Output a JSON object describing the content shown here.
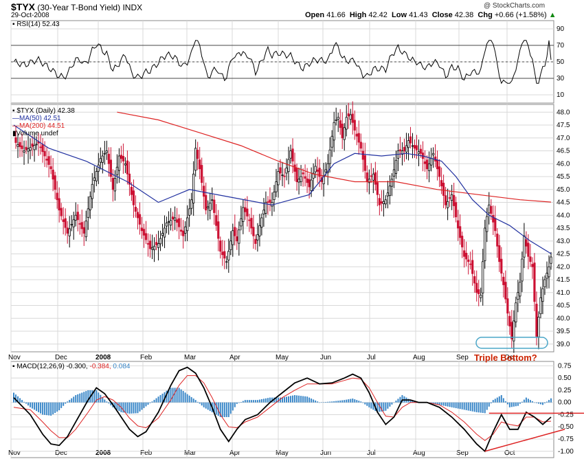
{
  "header": {
    "symbol": "$TYX",
    "name": "(30-Year T-Bond Yield)",
    "exchange": "INDX",
    "date": "29-Oct-2008",
    "open_label": "Open",
    "open": "41.66",
    "high_label": "High",
    "high": "42.42",
    "low_label": "Low",
    "low": "41.43",
    "close_label": "Close",
    "close": "42.38",
    "chg_label": "Chg",
    "chg": "+0.66 (+1.58%)",
    "chg_arrow": "▲",
    "brand": "@ StockCharts.com"
  },
  "legends": {
    "rsi": "RSI(14) 52.43",
    "price": "$TYX (Daily) 42.38",
    "ma50": "MA(50) 42.51",
    "ma200": "MA(200) 44.51",
    "volume": "Volume undef",
    "macd_prefix": "MACD(12,26,9) -0.300,",
    "macd_signal": "-0.384,",
    "macd_hist": "0.084"
  },
  "annotation": "Triple Bottom?",
  "colors": {
    "up": "#000000",
    "down": "#cc1133",
    "ma50": "#1f2f9f",
    "ma200": "#dd2222",
    "hist": "#3a87c8",
    "macd": "#000000",
    "signal": "#dd2222",
    "bottom_ellipse": "#4aa6c8",
    "grid": "#d8d8d8",
    "annotation": "#cc2200"
  },
  "chart_data": [
    {
      "type": "line",
      "title": "RSI(14)",
      "yticks": [
        90,
        70,
        50,
        30,
        10
      ],
      "ylim": [
        0,
        100
      ],
      "reference_lines": [
        70,
        50,
        30
      ],
      "latest": 52.43
    },
    {
      "type": "candlestick",
      "title": "$TYX (Daily)",
      "months": [
        "Nov",
        "Dec",
        "2008",
        "Feb",
        "Mar",
        "Apr",
        "May",
        "Jun",
        "Jul",
        "Aug",
        "Sep",
        "Oct"
      ],
      "yticks": [
        "48.0",
        "47.5",
        "47.0",
        "46.5",
        "46.0",
        "45.5",
        "45.0",
        "44.5",
        "44.0",
        "43.5",
        "43.0",
        "42.5",
        "42.0",
        "41.5",
        "41.0",
        "40.5",
        "40.0",
        "39.5",
        "39.0"
      ],
      "ylim": [
        38.7,
        48.3
      ],
      "close_path": [
        [
          0,
          46.9
        ],
        [
          5,
          46.5
        ],
        [
          12,
          46.8
        ],
        [
          18,
          45.8
        ],
        [
          22,
          44.2
        ],
        [
          26,
          43.3
        ],
        [
          30,
          44.0
        ],
        [
          34,
          43.3
        ],
        [
          38,
          45.2
        ],
        [
          42,
          46.2
        ],
        [
          45,
          46.5
        ],
        [
          48,
          45.0
        ],
        [
          51,
          46.3
        ],
        [
          54,
          46.0
        ],
        [
          58,
          44.4
        ],
        [
          62,
          43.4
        ],
        [
          66,
          42.7
        ],
        [
          70,
          42.9
        ],
        [
          74,
          43.7
        ],
        [
          78,
          43.9
        ],
        [
          82,
          43.2
        ],
        [
          86,
          44.6
        ],
        [
          88,
          46.6
        ],
        [
          90,
          45.8
        ],
        [
          93,
          44.2
        ],
        [
          96,
          44.6
        ],
        [
          98,
          43.6
        ],
        [
          100,
          42.6
        ],
        [
          103,
          42.2
        ],
        [
          106,
          43.4
        ],
        [
          108,
          43.0
        ],
        [
          111,
          44.3
        ],
        [
          114,
          43.8
        ],
        [
          117,
          42.9
        ],
        [
          119,
          43.6
        ],
        [
          122,
          44.5
        ],
        [
          125,
          44.5
        ],
        [
          128,
          45.7
        ],
        [
          131,
          45.5
        ],
        [
          134,
          46.5
        ],
        [
          137,
          45.3
        ],
        [
          140,
          45.6
        ],
        [
          143,
          45.1
        ],
        [
          146,
          45.9
        ],
        [
          149,
          45.3
        ],
        [
          152,
          46.0
        ],
        [
          155,
          47.6
        ],
        [
          157,
          47.8
        ],
        [
          159,
          47.0
        ],
        [
          161,
          47.8
        ],
        [
          163,
          47.9
        ],
        [
          165,
          47.3
        ],
        [
          168,
          46.6
        ],
        [
          171,
          45.3
        ],
        [
          174,
          45.6
        ],
        [
          177,
          44.4
        ],
        [
          180,
          44.6
        ],
        [
          183,
          45.4
        ],
        [
          186,
          46.5
        ],
        [
          189,
          46.5
        ],
        [
          191,
          46.9
        ],
        [
          194,
          46.6
        ],
        [
          197,
          46.4
        ],
        [
          200,
          45.8
        ],
        [
          203,
          46.4
        ],
        [
          206,
          45.5
        ],
        [
          209,
          44.4
        ],
        [
          212,
          44.8
        ],
        [
          215,
          43.5
        ],
        [
          218,
          42.4
        ],
        [
          221,
          42.1
        ],
        [
          224,
          41.0
        ],
        [
          226,
          40.9
        ],
        [
          228,
          43.5
        ],
        [
          230,
          44.4
        ],
        [
          233,
          43.4
        ],
        [
          235,
          42.2
        ],
        [
          237,
          41.3
        ],
        [
          239,
          40.2
        ],
        [
          241,
          39.2
        ],
        [
          243,
          40.6
        ],
        [
          245,
          41.4
        ],
        [
          247,
          43.2
        ],
        [
          249,
          42.4
        ],
        [
          251,
          42.0
        ],
        [
          253,
          39.3
        ],
        [
          255,
          40.8
        ],
        [
          257,
          41.5
        ],
        [
          259,
          42.0
        ],
        [
          260,
          42.38
        ]
      ],
      "ma50": [
        [
          0,
          47.5
        ],
        [
          17,
          46.6
        ],
        [
          35,
          46.1
        ],
        [
          55,
          45.3
        ],
        [
          70,
          44.5
        ],
        [
          85,
          45.0
        ],
        [
          105,
          44.7
        ],
        [
          125,
          44.4
        ],
        [
          143,
          44.8
        ],
        [
          155,
          46.0
        ],
        [
          165,
          46.4
        ],
        [
          178,
          46.3
        ],
        [
          190,
          46.4
        ],
        [
          198,
          46.3
        ],
        [
          207,
          46.1
        ],
        [
          214,
          45.5
        ],
        [
          222,
          44.6
        ],
        [
          230,
          44.0
        ],
        [
          240,
          43.6
        ],
        [
          250,
          43.0
        ],
        [
          260,
          42.51
        ]
      ],
      "ma200": [
        [
          50,
          48.0
        ],
        [
          70,
          47.7
        ],
        [
          90,
          47.2
        ],
        [
          110,
          46.7
        ],
        [
          128,
          46.1
        ],
        [
          145,
          45.6
        ],
        [
          165,
          45.3
        ],
        [
          185,
          45.3
        ],
        [
          205,
          45.0
        ],
        [
          225,
          44.8
        ],
        [
          245,
          44.6
        ],
        [
          260,
          44.51
        ]
      ],
      "last": 42.38,
      "ma50_last": 42.51,
      "ma200_last": 44.51
    },
    {
      "type": "line",
      "title": "MACD(12,26,9)",
      "yticks": [
        "0.75",
        "0.50",
        "0.25",
        "0.00",
        "-0.25",
        "-0.50",
        "-0.75",
        "-1.00"
      ],
      "ylim": [
        -1.13,
        0.84
      ],
      "macd": [
        [
          0,
          0.1
        ],
        [
          8,
          -0.25
        ],
        [
          14,
          -0.65
        ],
        [
          18,
          -0.85
        ],
        [
          22,
          -0.88
        ],
        [
          26,
          -0.7
        ],
        [
          30,
          -0.4
        ],
        [
          36,
          0.05
        ],
        [
          40,
          0.3
        ],
        [
          44,
          0.18
        ],
        [
          48,
          -0.05
        ],
        [
          52,
          -0.3
        ],
        [
          56,
          -0.55
        ],
        [
          60,
          -0.7
        ],
        [
          64,
          -0.6
        ],
        [
          70,
          -0.2
        ],
        [
          76,
          0.35
        ],
        [
          80,
          0.65
        ],
        [
          84,
          0.72
        ],
        [
          88,
          0.6
        ],
        [
          92,
          0.3
        ],
        [
          96,
          -0.1
        ],
        [
          100,
          -0.55
        ],
        [
          104,
          -0.8
        ],
        [
          108,
          -0.55
        ],
        [
          112,
          -0.35
        ],
        [
          118,
          -0.25
        ],
        [
          124,
          0.0
        ],
        [
          130,
          0.2
        ],
        [
          136,
          0.4
        ],
        [
          142,
          0.5
        ],
        [
          148,
          0.38
        ],
        [
          154,
          0.4
        ],
        [
          160,
          0.5
        ],
        [
          164,
          0.58
        ],
        [
          168,
          0.5
        ],
        [
          172,
          0.2
        ],
        [
          176,
          -0.2
        ],
        [
          180,
          -0.45
        ],
        [
          184,
          -0.3
        ],
        [
          188,
          0.05
        ],
        [
          192,
          0.05
        ],
        [
          196,
          0.0
        ],
        [
          200,
          0.0
        ],
        [
          206,
          -0.1
        ],
        [
          212,
          -0.3
        ],
        [
          218,
          -0.55
        ],
        [
          224,
          -0.85
        ],
        [
          228,
          -1.0
        ],
        [
          232,
          -0.6
        ],
        [
          236,
          -0.25
        ],
        [
          240,
          -0.55
        ],
        [
          244,
          -0.55
        ],
        [
          248,
          -0.2
        ],
        [
          252,
          -0.3
        ],
        [
          256,
          -0.45
        ],
        [
          260,
          -0.3
        ]
      ],
      "signal": [
        [
          0,
          -0.1
        ],
        [
          8,
          -0.15
        ],
        [
          14,
          -0.4
        ],
        [
          18,
          -0.58
        ],
        [
          22,
          -0.72
        ],
        [
          26,
          -0.72
        ],
        [
          30,
          -0.55
        ],
        [
          36,
          -0.2
        ],
        [
          40,
          0.05
        ],
        [
          44,
          0.12
        ],
        [
          48,
          0.05
        ],
        [
          52,
          -0.1
        ],
        [
          56,
          -0.32
        ],
        [
          60,
          -0.48
        ],
        [
          64,
          -0.52
        ],
        [
          70,
          -0.32
        ],
        [
          76,
          0.05
        ],
        [
          80,
          0.35
        ],
        [
          84,
          0.55
        ],
        [
          88,
          0.55
        ],
        [
          92,
          0.4
        ],
        [
          96,
          0.1
        ],
        [
          100,
          -0.25
        ],
        [
          104,
          -0.5
        ],
        [
          108,
          -0.52
        ],
        [
          112,
          -0.4
        ],
        [
          118,
          -0.3
        ],
        [
          124,
          -0.1
        ],
        [
          130,
          0.1
        ],
        [
          136,
          0.25
        ],
        [
          142,
          0.38
        ],
        [
          148,
          0.38
        ],
        [
          154,
          0.38
        ],
        [
          160,
          0.45
        ],
        [
          164,
          0.5
        ],
        [
          168,
          0.48
        ],
        [
          172,
          0.3
        ],
        [
          176,
          0.0
        ],
        [
          180,
          -0.28
        ],
        [
          184,
          -0.3
        ],
        [
          188,
          -0.1
        ],
        [
          192,
          0.0
        ],
        [
          196,
          0.0
        ],
        [
          200,
          0.0
        ],
        [
          206,
          -0.05
        ],
        [
          212,
          -0.2
        ],
        [
          218,
          -0.4
        ],
        [
          224,
          -0.65
        ],
        [
          228,
          -0.78
        ],
        [
          232,
          -0.65
        ],
        [
          236,
          -0.4
        ],
        [
          240,
          -0.45
        ],
        [
          244,
          -0.48
        ],
        [
          248,
          -0.3
        ],
        [
          252,
          -0.3
        ],
        [
          256,
          -0.4
        ],
        [
          260,
          -0.384
        ]
      ],
      "histogram_last": 0.084
    }
  ]
}
